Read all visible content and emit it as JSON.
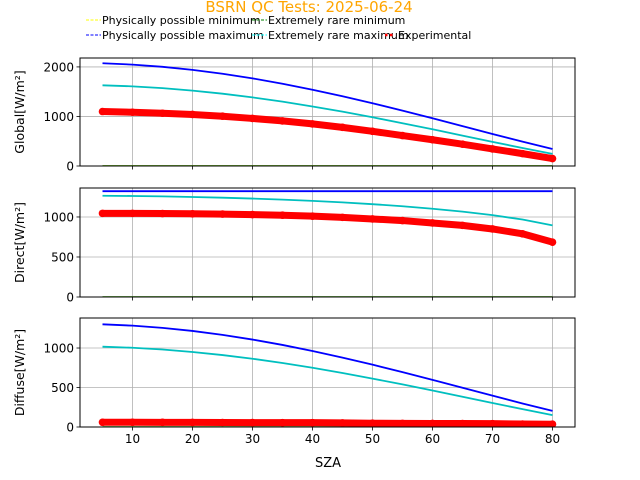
{
  "chart_data": {
    "type": "line",
    "title": "BSRN QC Tests: 2025-06-24",
    "title_color": "#FFA500",
    "xlabel": "SZA",
    "xlim": [
      1.25,
      83.75
    ],
    "xticks": [
      10,
      20,
      30,
      40,
      50,
      60,
      70,
      80
    ],
    "grid": true,
    "legend": {
      "placement": "top",
      "entries": [
        {
          "label": "Physically possible minimum",
          "color": "#FFFF00",
          "style": "dashed"
        },
        {
          "label": "Extremely rare minimum",
          "color": "#008000",
          "style": "dashed"
        },
        {
          "label": "Physically possible maximum",
          "color": "#0000FF",
          "style": "dashed"
        },
        {
          "label": "Extremely rare maximum",
          "color": "#00FFFF",
          "style": "dashed"
        },
        {
          "label": "Experimental",
          "color": "#FF0000",
          "style": "dotted"
        }
      ]
    },
    "x": [
      5,
      10,
      15,
      20,
      25,
      30,
      35,
      40,
      45,
      50,
      55,
      60,
      65,
      70,
      75,
      80
    ],
    "panels": [
      {
        "ylabel": "Global[W/m²]",
        "ylabel_main": "Global[W/m",
        "ylim": [
          0,
          2180
        ],
        "yticks": [
          0,
          1000,
          2000
        ],
        "series": [
          {
            "name": "Physically possible minimum",
            "color": "#FFFF00",
            "values": [
              -4,
              -4,
              -4,
              -4,
              -4,
              -4,
              -4,
              -4,
              -4,
              -4,
              -4,
              -4,
              -4,
              -4,
              -4,
              -4
            ]
          },
          {
            "name": "Extremely rare minimum",
            "color": "#008000",
            "values": [
              -2,
              -2,
              -2,
              -2,
              -2,
              -2,
              -2,
              -2,
              -2,
              -2,
              -2,
              -2,
              -2,
              -2,
              -2,
              -2
            ]
          },
          {
            "name": "Physically possible maximum",
            "color": "#0000FF",
            "values": [
              2074,
              2047,
              2002,
              1940,
              1862,
              1769,
              1661,
              1540,
              1408,
              1267,
              1118,
              963,
              805,
              647,
              492,
              343
            ]
          },
          {
            "name": "Extremely rare maximum",
            "color": "#00BFBF",
            "values": [
              1629,
              1608,
              1572,
              1522,
              1460,
              1385,
              1299,
              1202,
              1097,
              983,
              864,
              741,
              614,
              488,
              363,
              244
            ]
          },
          {
            "name": "Experimental",
            "color": "#FF0000",
            "marker": true,
            "values": [
              1100,
              1085,
              1065,
              1040,
              1005,
              960,
              910,
              850,
              780,
              700,
              615,
              530,
              440,
              345,
              250,
              150
            ]
          }
        ]
      },
      {
        "ylabel": "Direct[W/m²]",
        "ylabel_main": "Direct[W/m",
        "ylim": [
          0,
          1362
        ],
        "yticks": [
          0,
          500,
          1000
        ],
        "series": [
          {
            "name": "Physically possible minimum",
            "color": "#FFFF00",
            "values": [
              -4,
              -4,
              -4,
              -4,
              -4,
              -4,
              -4,
              -4,
              -4,
              -4,
              -4,
              -4,
              -4,
              -4,
              -4,
              -4
            ]
          },
          {
            "name": "Extremely rare minimum",
            "color": "#008000",
            "values": [
              -2,
              -2,
              -2,
              -2,
              -2,
              -2,
              -2,
              -2,
              -2,
              -2,
              -2,
              -2,
              -2,
              -2,
              -2,
              -2
            ]
          },
          {
            "name": "Physically possible maximum",
            "color": "#0000FF",
            "values": [
              1322,
              1322,
              1322,
              1322,
              1322,
              1322,
              1322,
              1322,
              1322,
              1322,
              1322,
              1322,
              1322,
              1322,
              1322,
              1322
            ]
          },
          {
            "name": "Extremely rare maximum",
            "color": "#00BFBF",
            "values": [
              1265,
              1262,
              1257,
              1250,
              1241,
              1230,
              1217,
              1201,
              1182,
              1160,
              1134,
              1103,
              1067,
              1023,
              968,
              895
            ]
          },
          {
            "name": "Experimental",
            "color": "#FF0000",
            "marker": true,
            "values": [
              1045,
              1045,
              1043,
              1040,
              1036,
              1030,
              1022,
              1010,
              995,
              975,
              955,
              925,
              895,
              850,
              790,
              685
            ]
          }
        ]
      },
      {
        "ylabel": "Diffuse[W/m²]",
        "ylabel_main": "Diffuse[W/m",
        "ylim": [
          0,
          1380
        ],
        "yticks": [
          0,
          500,
          1000
        ],
        "series": [
          {
            "name": "Physically possible minimum",
            "color": "#FFFF00",
            "values": [
              -4,
              -4,
              -4,
              -4,
              -4,
              -4,
              -4,
              -4,
              -4,
              -4,
              -4,
              -4,
              -4,
              -4,
              -4,
              -4
            ]
          },
          {
            "name": "Extremely rare minimum",
            "color": "#008000",
            "values": [
              -2,
              -2,
              -2,
              -2,
              -2,
              -2,
              -2,
              -2,
              -2,
              -2,
              -2,
              -2,
              -2,
              -2,
              -2,
              -2
            ]
          },
          {
            "name": "Physically possible maximum",
            "color": "#0000FF",
            "values": [
              1300,
              1283,
              1255,
              1216,
              1166,
              1107,
              1039,
              962,
              879,
              789,
              695,
              597,
              497,
              397,
              298,
              204
            ]
          },
          {
            "name": "Extremely rare maximum",
            "color": "#00BFBF",
            "values": [
              1017,
              1003,
              981,
              950,
              911,
              864,
              810,
              750,
              684,
              613,
              539,
              462,
              383,
              304,
              226,
              151
            ]
          },
          {
            "name": "Experimental",
            "color": "#FF0000",
            "marker": true,
            "values": [
              60,
              60,
              59,
              58,
              57,
              56,
              55,
              55,
              52,
              48,
              46,
              45,
              44,
              42,
              38,
              35
            ]
          }
        ]
      }
    ]
  }
}
